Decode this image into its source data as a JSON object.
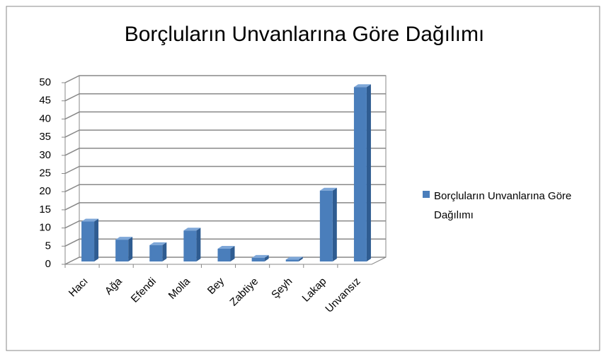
{
  "chart_data": {
    "type": "bar3d",
    "title": "Borçluların Unvanlarına Göre Dağılımı",
    "categories": [
      "Hacı",
      "Ağa",
      "Efendi",
      "Molla",
      "Bey",
      "Zabtiye",
      "Şeyh",
      "Lakap",
      "Unvansız"
    ],
    "series": [
      {
        "name": "Borçluların Unvanlarına Göre Dağılımı",
        "color": "#4a7ebb",
        "values": [
          11,
          6,
          4.5,
          8.5,
          3.5,
          1,
          0.5,
          19.5,
          48
        ]
      }
    ],
    "ylim": [
      0,
      50
    ],
    "yticks": [
      0,
      5,
      10,
      15,
      20,
      25,
      30,
      35,
      40,
      45,
      50
    ],
    "grid": true,
    "legend": "right"
  }
}
